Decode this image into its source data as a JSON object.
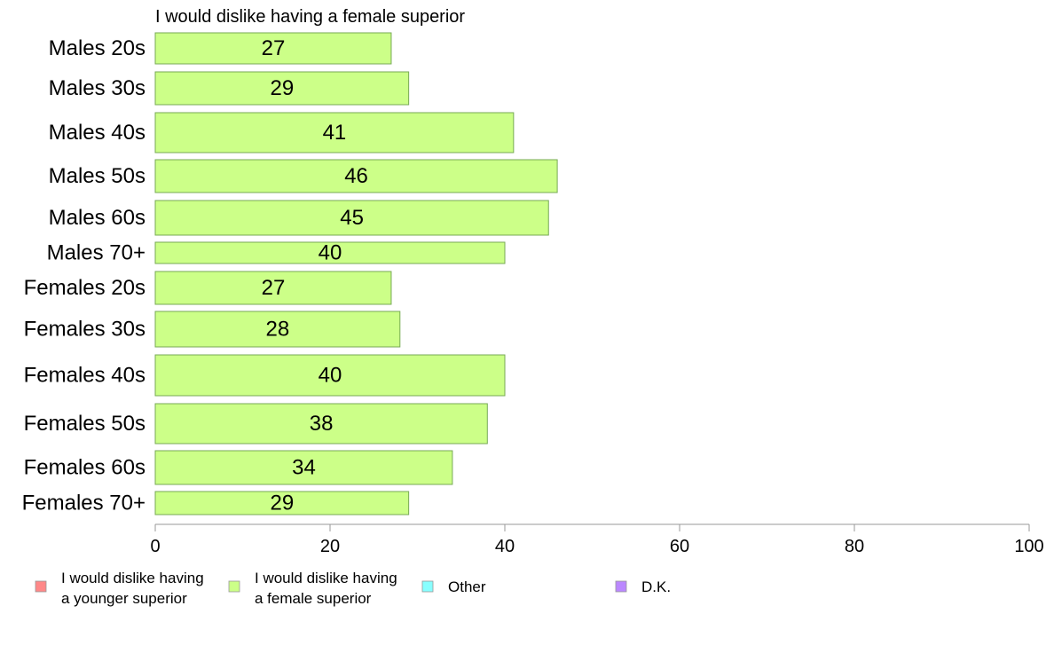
{
  "chart_data": {
    "type": "bar",
    "orientation": "horizontal",
    "title": "I would dislike having a female superior",
    "categories": [
      "Males 20s",
      "Males 30s",
      "Males 40s",
      "Males 50s",
      "Males 60s",
      "Males 70+",
      "Females 20s",
      "Females 30s",
      "Females 40s",
      "Females 50s",
      "Females 60s",
      "Females 70+"
    ],
    "values": [
      27,
      29,
      41,
      46,
      45,
      40,
      27,
      28,
      40,
      38,
      34,
      29
    ],
    "xlim": [
      0,
      100
    ],
    "xticks": [
      0,
      20,
      40,
      60,
      80,
      100
    ],
    "grid": false,
    "legend_position": "bottom",
    "bar_color": "#ccff88",
    "legend": [
      {
        "lines": [
          "I would dislike having",
          "a younger superior"
        ],
        "color": "#ff8888"
      },
      {
        "lines": [
          "I would dislike having",
          "a female superior"
        ],
        "color": "#ccff88"
      },
      {
        "lines": [
          "Other"
        ],
        "color": "#88ffff"
      },
      {
        "lines": [
          "D.K."
        ],
        "color": "#bb88ff"
      }
    ]
  }
}
